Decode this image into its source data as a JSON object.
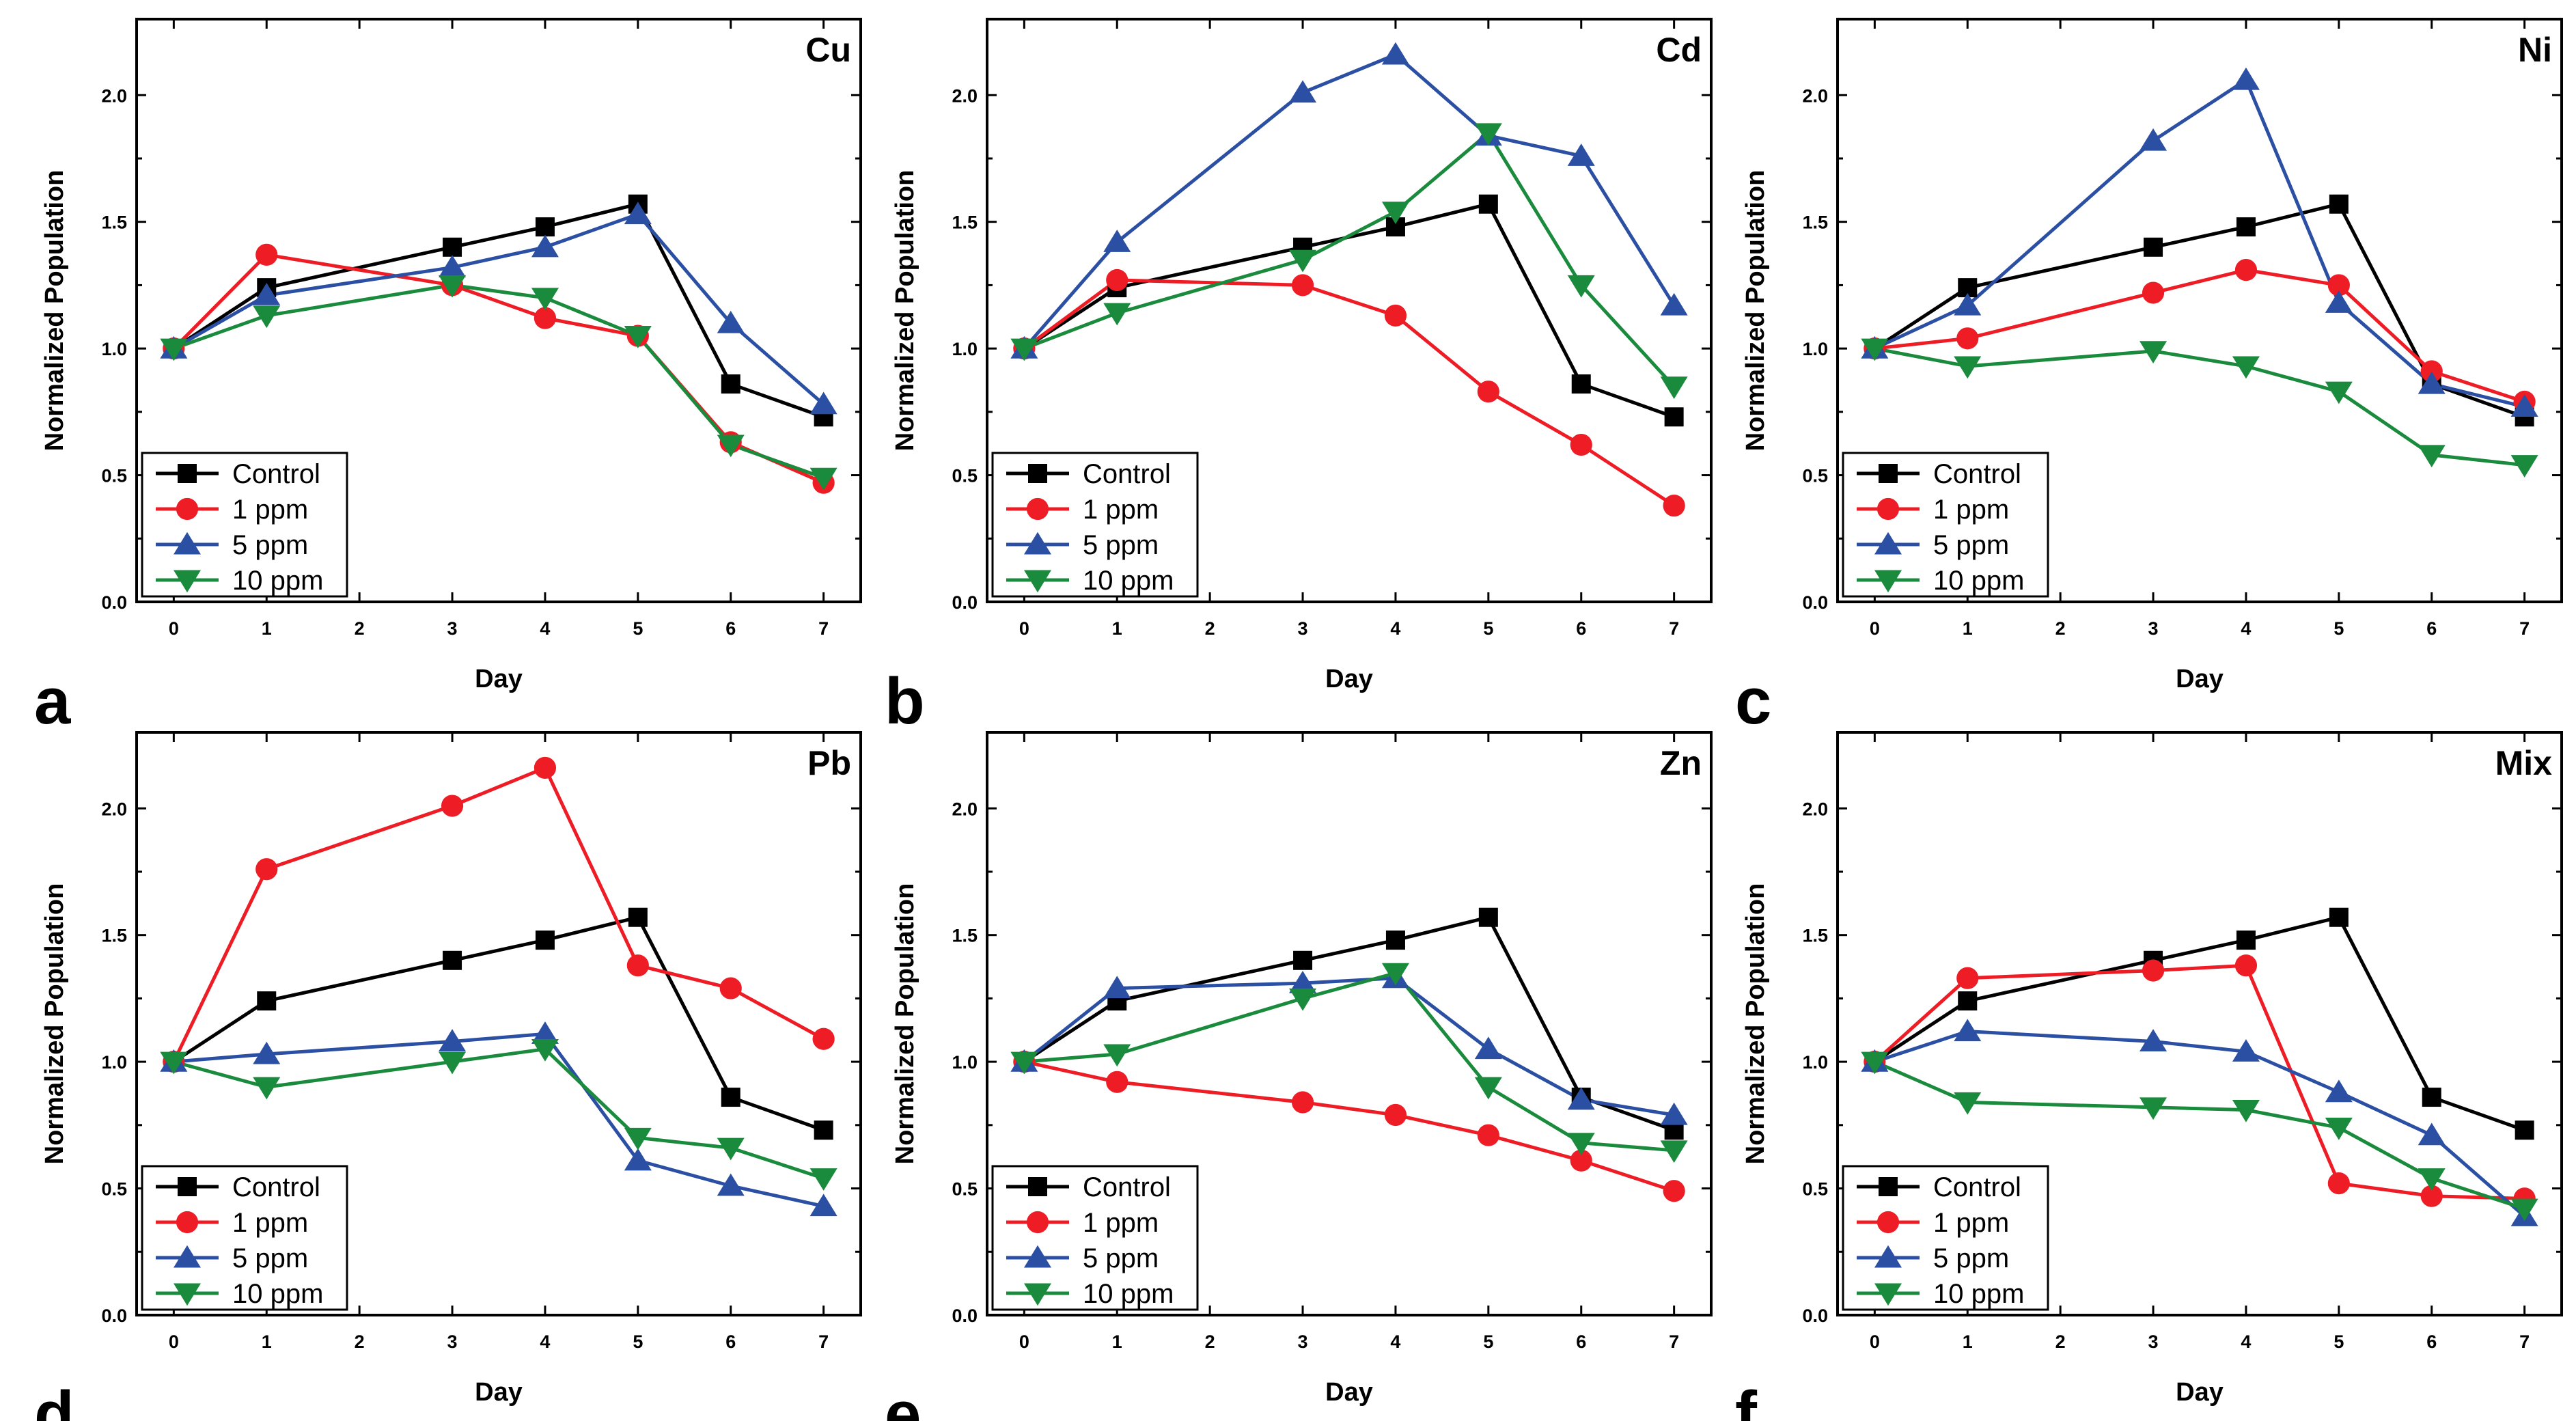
{
  "x_ticks": [
    "0",
    "1",
    "2",
    "3",
    "4",
    "5",
    "6",
    "7"
  ],
  "y_ticks": [
    "0.0",
    "0.5",
    "1.0",
    "1.5",
    "2.0"
  ],
  "chart_data": [
    {
      "type": "line",
      "title": "Cu",
      "panel_label": "a",
      "xlabel": "Day",
      "ylabel": "Normalized Population",
      "xlim": [
        -0.4,
        7.4
      ],
      "ylim": [
        0,
        2.3
      ],
      "legend": "bottom-left",
      "series": [
        {
          "name": "Control",
          "color": "#000000",
          "marker": "square",
          "x": [
            0,
            1,
            3,
            4,
            5,
            6,
            7
          ],
          "y": [
            1.0,
            1.24,
            1.4,
            1.48,
            1.57,
            0.86,
            0.73
          ]
        },
        {
          "name": "1 ppm",
          "color": "#ee1c25",
          "marker": "circle",
          "x": [
            0,
            1,
            3,
            4,
            5,
            6,
            7
          ],
          "y": [
            1.0,
            1.37,
            1.25,
            1.12,
            1.05,
            0.63,
            0.47
          ]
        },
        {
          "name": "5 ppm",
          "color": "#2b4fa3",
          "marker": "triangle-up",
          "x": [
            0,
            1,
            3,
            4,
            5,
            6,
            7
          ],
          "y": [
            1.0,
            1.21,
            1.32,
            1.4,
            1.53,
            1.1,
            0.78
          ]
        },
        {
          "name": "10 ppm",
          "color": "#1a8a3c",
          "marker": "triangle-down",
          "x": [
            0,
            1,
            3,
            4,
            5,
            6,
            7
          ],
          "y": [
            1.0,
            1.13,
            1.25,
            1.2,
            1.05,
            0.62,
            0.49
          ]
        }
      ]
    },
    {
      "type": "line",
      "title": "Cd",
      "panel_label": "b",
      "xlabel": "Day",
      "ylabel": "Normalized Population",
      "xlim": [
        -0.4,
        7.4
      ],
      "ylim": [
        0,
        2.3
      ],
      "legend": "bottom-left",
      "series": [
        {
          "name": "Control",
          "color": "#000000",
          "marker": "square",
          "x": [
            0,
            1,
            3,
            4,
            5,
            6,
            7
          ],
          "y": [
            1.0,
            1.24,
            1.4,
            1.48,
            1.57,
            0.86,
            0.73
          ]
        },
        {
          "name": "1 ppm",
          "color": "#ee1c25",
          "marker": "circle",
          "x": [
            0,
            1,
            3,
            4,
            5,
            6,
            7
          ],
          "y": [
            1.0,
            1.27,
            1.25,
            1.13,
            0.83,
            0.62,
            0.38
          ]
        },
        {
          "name": "5 ppm",
          "color": "#2b4fa3",
          "marker": "triangle-up",
          "x": [
            0,
            1,
            3,
            4,
            5,
            6,
            7
          ],
          "y": [
            1.0,
            1.42,
            2.01,
            2.16,
            1.84,
            1.76,
            1.17
          ]
        },
        {
          "name": "10 ppm",
          "color": "#1a8a3c",
          "marker": "triangle-down",
          "x": [
            0,
            1,
            3,
            4,
            5,
            6,
            7
          ],
          "y": [
            1.0,
            1.14,
            1.35,
            1.54,
            1.85,
            1.25,
            0.85
          ]
        }
      ]
    },
    {
      "type": "line",
      "title": "Ni",
      "panel_label": "c",
      "xlabel": "Day",
      "ylabel": "Normalized Population",
      "xlim": [
        -0.4,
        7.4
      ],
      "ylim": [
        0,
        2.3
      ],
      "legend": "bottom-left",
      "series": [
        {
          "name": "Control",
          "color": "#000000",
          "marker": "square",
          "x": [
            0,
            1,
            3,
            4,
            5,
            6,
            7
          ],
          "y": [
            1.0,
            1.24,
            1.4,
            1.48,
            1.57,
            0.86,
            0.73
          ]
        },
        {
          "name": "1 ppm",
          "color": "#ee1c25",
          "marker": "circle",
          "x": [
            0,
            1,
            3,
            4,
            5,
            6,
            7
          ],
          "y": [
            1.0,
            1.04,
            1.22,
            1.31,
            1.25,
            0.91,
            0.79
          ]
        },
        {
          "name": "5 ppm",
          "color": "#2b4fa3",
          "marker": "triangle-up",
          "x": [
            0,
            1,
            3,
            4,
            5,
            6,
            7
          ],
          "y": [
            1.0,
            1.17,
            1.82,
            2.06,
            1.18,
            0.86,
            0.77
          ]
        },
        {
          "name": "10 ppm",
          "color": "#1a8a3c",
          "marker": "triangle-down",
          "x": [
            0,
            1,
            3,
            4,
            5,
            6,
            7
          ],
          "y": [
            1.0,
            0.93,
            0.99,
            0.93,
            0.83,
            0.58,
            0.54
          ]
        }
      ]
    },
    {
      "type": "line",
      "title": "Pb",
      "panel_label": "d",
      "xlabel": "Day",
      "ylabel": "Normalized Population",
      "xlim": [
        -0.4,
        7.4
      ],
      "ylim": [
        0,
        2.3
      ],
      "legend": "bottom-left",
      "series": [
        {
          "name": "Control",
          "color": "#000000",
          "marker": "square",
          "x": [
            0,
            1,
            3,
            4,
            5,
            6,
            7
          ],
          "y": [
            1.0,
            1.24,
            1.4,
            1.48,
            1.57,
            0.86,
            0.73
          ]
        },
        {
          "name": "1 ppm",
          "color": "#ee1c25",
          "marker": "circle",
          "x": [
            0,
            1,
            3,
            4,
            5,
            6,
            7
          ],
          "y": [
            1.0,
            1.76,
            2.01,
            2.16,
            1.38,
            1.29,
            1.09
          ]
        },
        {
          "name": "5 ppm",
          "color": "#2b4fa3",
          "marker": "triangle-up",
          "x": [
            0,
            1,
            3,
            4,
            5,
            6,
            7
          ],
          "y": [
            1.0,
            1.03,
            1.08,
            1.11,
            0.61,
            0.51,
            0.43
          ]
        },
        {
          "name": "10 ppm",
          "color": "#1a8a3c",
          "marker": "triangle-down",
          "x": [
            0,
            1,
            3,
            4,
            5,
            6,
            7
          ],
          "y": [
            1.0,
            0.9,
            1.0,
            1.05,
            0.7,
            0.66,
            0.54
          ]
        }
      ]
    },
    {
      "type": "line",
      "title": "Zn",
      "panel_label": "e",
      "xlabel": "Day",
      "ylabel": "Normalized Population",
      "xlim": [
        -0.4,
        7.4
      ],
      "ylim": [
        0,
        2.3
      ],
      "legend": "bottom-left",
      "series": [
        {
          "name": "Control",
          "color": "#000000",
          "marker": "square",
          "x": [
            0,
            1,
            3,
            4,
            5,
            6,
            7
          ],
          "y": [
            1.0,
            1.24,
            1.4,
            1.48,
            1.57,
            0.86,
            0.73
          ]
        },
        {
          "name": "1 ppm",
          "color": "#ee1c25",
          "marker": "circle",
          "x": [
            0,
            1,
            3,
            4,
            5,
            6,
            7
          ],
          "y": [
            1.0,
            0.92,
            0.84,
            0.79,
            0.71,
            0.61,
            0.49
          ]
        },
        {
          "name": "5 ppm",
          "color": "#2b4fa3",
          "marker": "triangle-up",
          "x": [
            0,
            1,
            3,
            4,
            5,
            6,
            7
          ],
          "y": [
            1.0,
            1.29,
            1.31,
            1.33,
            1.05,
            0.85,
            0.79
          ]
        },
        {
          "name": "10 ppm",
          "color": "#1a8a3c",
          "marker": "triangle-down",
          "x": [
            0,
            1,
            3,
            4,
            5,
            6,
            7
          ],
          "y": [
            1.0,
            1.03,
            1.25,
            1.35,
            0.9,
            0.68,
            0.65
          ]
        }
      ]
    },
    {
      "type": "line",
      "title": "Mix",
      "panel_label": "f",
      "xlabel": "Day",
      "ylabel": "Normalized Population",
      "xlim": [
        -0.4,
        7.4
      ],
      "ylim": [
        0,
        2.3
      ],
      "legend": "bottom-left",
      "series": [
        {
          "name": "Control",
          "color": "#000000",
          "marker": "square",
          "x": [
            0,
            1,
            3,
            4,
            5,
            6,
            7
          ],
          "y": [
            1.0,
            1.24,
            1.4,
            1.48,
            1.57,
            0.86,
            0.73
          ]
        },
        {
          "name": "1 ppm",
          "color": "#ee1c25",
          "marker": "circle",
          "x": [
            0,
            1,
            3,
            4,
            5,
            6,
            7
          ],
          "y": [
            1.0,
            1.33,
            1.36,
            1.38,
            0.52,
            0.47,
            0.46
          ]
        },
        {
          "name": "5 ppm",
          "color": "#2b4fa3",
          "marker": "triangle-up",
          "x": [
            0,
            1,
            3,
            4,
            5,
            6,
            7
          ],
          "y": [
            1.0,
            1.12,
            1.08,
            1.04,
            0.88,
            0.71,
            0.39
          ]
        },
        {
          "name": "10 ppm",
          "color": "#1a8a3c",
          "marker": "triangle-down",
          "x": [
            0,
            1,
            3,
            4,
            5,
            6,
            7
          ],
          "y": [
            1.0,
            0.84,
            0.82,
            0.81,
            0.74,
            0.54,
            0.42
          ]
        }
      ]
    }
  ]
}
